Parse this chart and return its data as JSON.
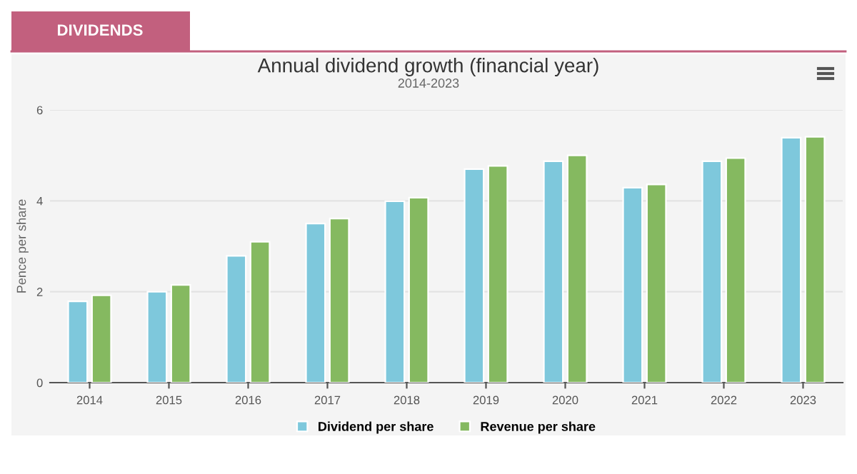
{
  "chart_data": {
    "type": "bar",
    "title": "Annual dividend growth (financial year)",
    "subtitle": "2014-2023",
    "annotations": [
      "DIVIDENDS"
    ],
    "categories": [
      "2014",
      "2015",
      "2016",
      "2017",
      "2018",
      "2019",
      "2020",
      "2021",
      "2022",
      "2023"
    ],
    "ylabel": "Pence per share",
    "ylim": [
      0,
      6
    ],
    "yticks": [
      0,
      2,
      4,
      6
    ],
    "grid": "y",
    "legend": "bottom",
    "series": [
      {
        "name": "Dividend per share",
        "color": "#7ec8dc",
        "values": [
          1.79,
          2.0,
          2.79,
          3.5,
          3.99,
          4.7,
          4.87,
          4.29,
          4.87,
          5.39
        ]
      },
      {
        "name": "Revenue per share",
        "color": "#85b960",
        "values": [
          1.92,
          2.15,
          3.1,
          3.61,
          4.07,
          4.77,
          5.0,
          4.36,
          4.94,
          5.41
        ]
      }
    ]
  }
}
